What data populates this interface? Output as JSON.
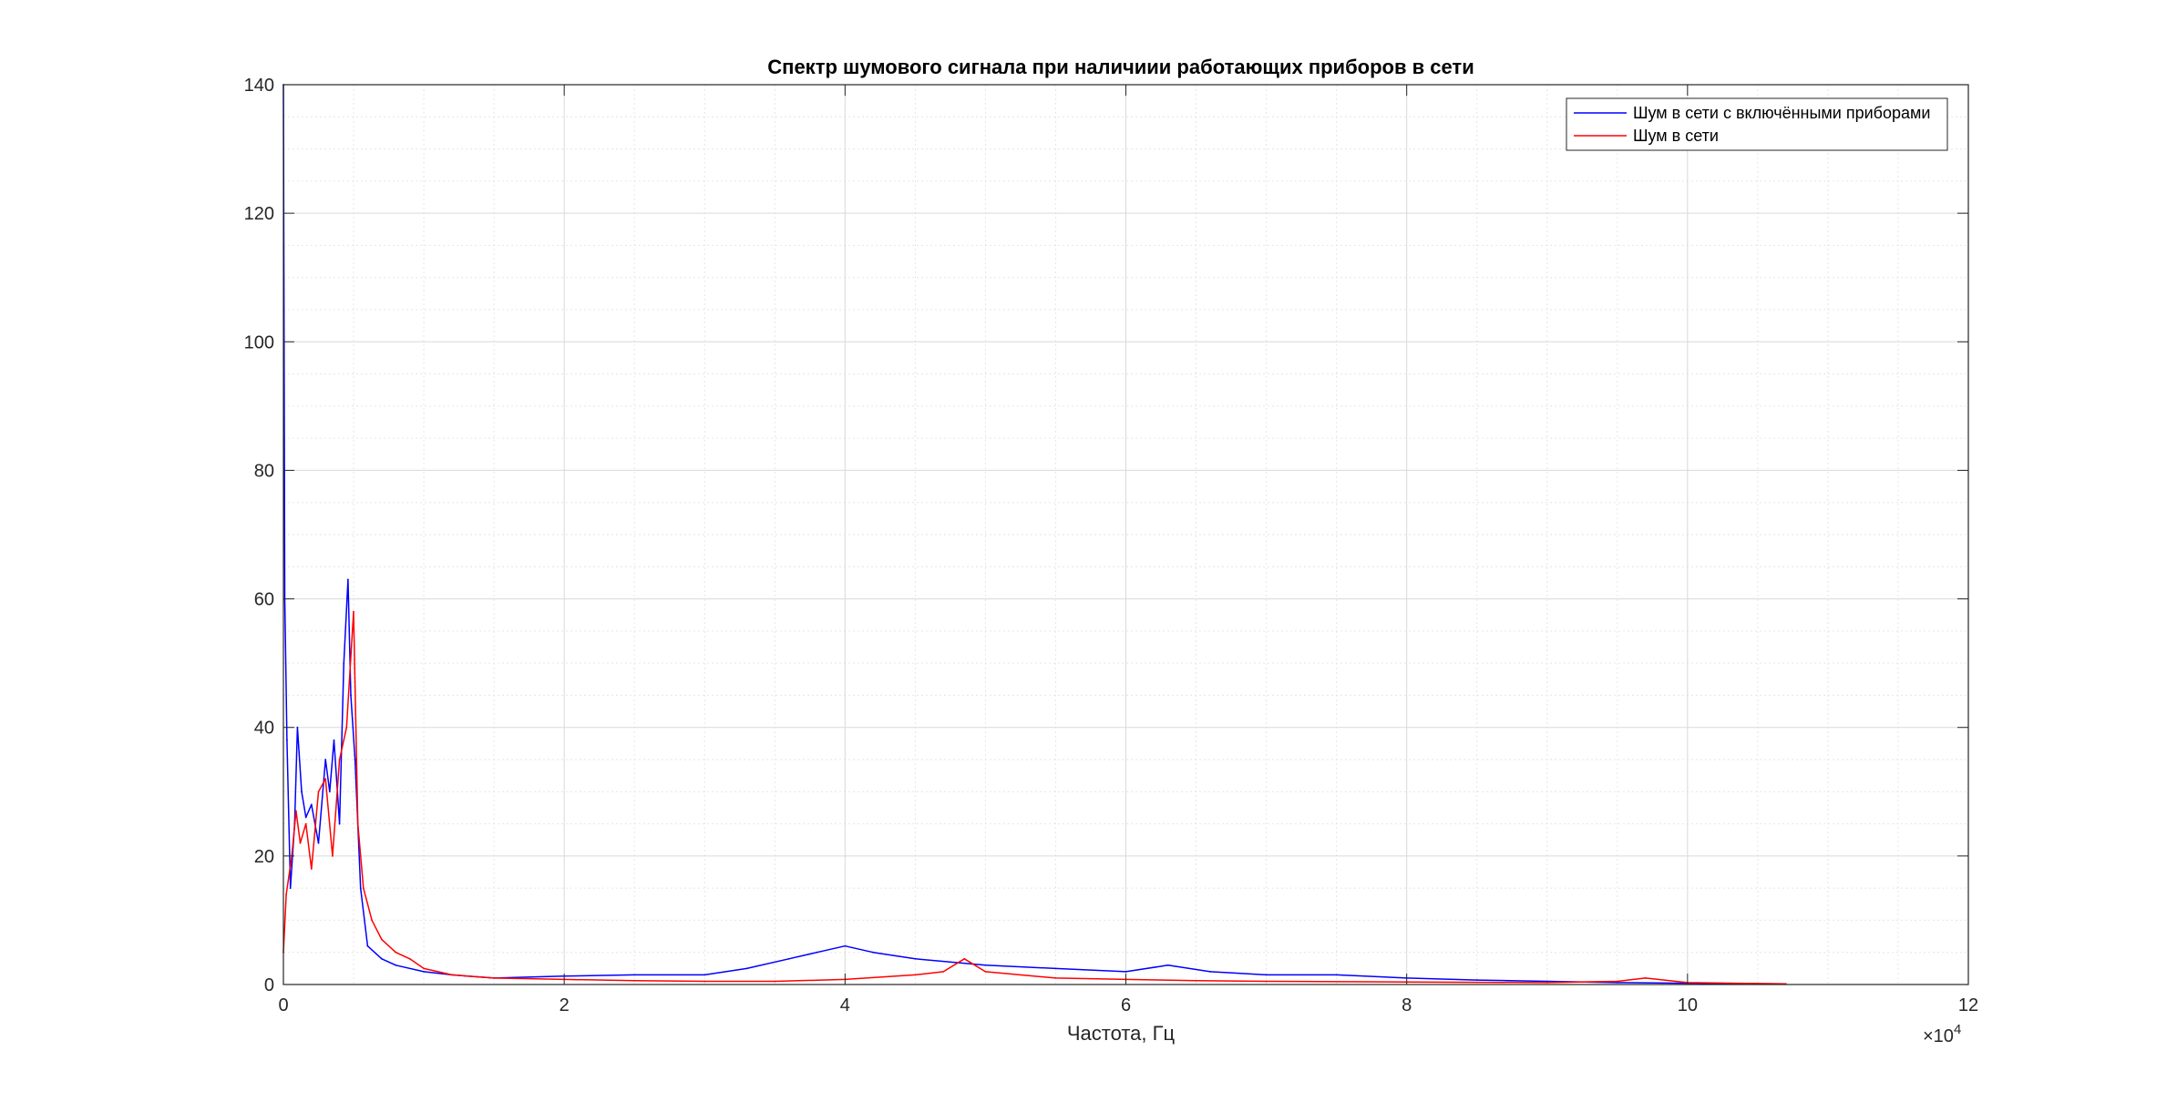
{
  "chart_data": {
    "type": "line",
    "title": "Спектр шумового сигнала при наличиии работающих приборов в сети",
    "xlabel": "Частота, Гц",
    "ylabel": "",
    "x_exponent_label": "×10",
    "x_exponent_power": "4",
    "xlim": [
      0,
      120000
    ],
    "ylim": [
      0,
      140
    ],
    "xticks": [
      0,
      20000,
      40000,
      60000,
      80000,
      100000,
      120000
    ],
    "xtick_labels": [
      "0",
      "2",
      "4",
      "6",
      "8",
      "10",
      "12"
    ],
    "yticks": [
      0,
      20,
      40,
      60,
      80,
      100,
      120,
      140
    ],
    "ytick_labels": [
      "0",
      "20",
      "40",
      "60",
      "80",
      "100",
      "120",
      "140"
    ],
    "grid": true,
    "minor_grid": true,
    "legend_position": "top-right",
    "series": [
      {
        "name": "Шум в сети с включёнными приборами",
        "color": "#0000ff",
        "x": [
          0,
          100,
          250,
          500,
          800,
          1000,
          1300,
          1600,
          2000,
          2500,
          3000,
          3300,
          3600,
          4000,
          4300,
          4600,
          4800,
          5100,
          5500,
          6000,
          7000,
          8000,
          10000,
          12000,
          15000,
          20000,
          25000,
          30000,
          33000,
          36000,
          38000,
          40000,
          42000,
          45000,
          50000,
          55000,
          60000,
          63000,
          66000,
          70000,
          75000,
          80000,
          85000,
          90000,
          95000,
          100000,
          107000
        ],
        "y": [
          140,
          60,
          38,
          15,
          25,
          40,
          30,
          26,
          28,
          22,
          35,
          30,
          38,
          25,
          50,
          63,
          45,
          35,
          15,
          6,
          4,
          3,
          2,
          1.5,
          1,
          1.3,
          1.5,
          1.5,
          2.5,
          4,
          5,
          6,
          5,
          4,
          3,
          2.5,
          2,
          3,
          2,
          1.5,
          1.5,
          1,
          0.7,
          0.5,
          0.3,
          0.2,
          0.1
        ]
      },
      {
        "name": "Шум в сети",
        "color": "#ff0000",
        "x": [
          0,
          200,
          600,
          900,
          1200,
          1600,
          2000,
          2500,
          3000,
          3500,
          4000,
          4500,
          5000,
          5300,
          5700,
          6300,
          7000,
          8000,
          9000,
          10000,
          12000,
          15000,
          20000,
          25000,
          30000,
          35000,
          40000,
          45000,
          47000,
          48500,
          50000,
          55000,
          60000,
          65000,
          70000,
          80000,
          90000,
          95000,
          97000,
          100000,
          107000
        ],
        "y": [
          5,
          14,
          20,
          27,
          22,
          25,
          18,
          30,
          32,
          20,
          35,
          40,
          58,
          25,
          15,
          10,
          7,
          5,
          4,
          2.5,
          1.5,
          1,
          0.8,
          0.6,
          0.5,
          0.5,
          0.8,
          1.5,
          2,
          4,
          2,
          1,
          0.8,
          0.6,
          0.5,
          0.4,
          0.3,
          0.5,
          1,
          0.3,
          0.1
        ]
      }
    ]
  }
}
